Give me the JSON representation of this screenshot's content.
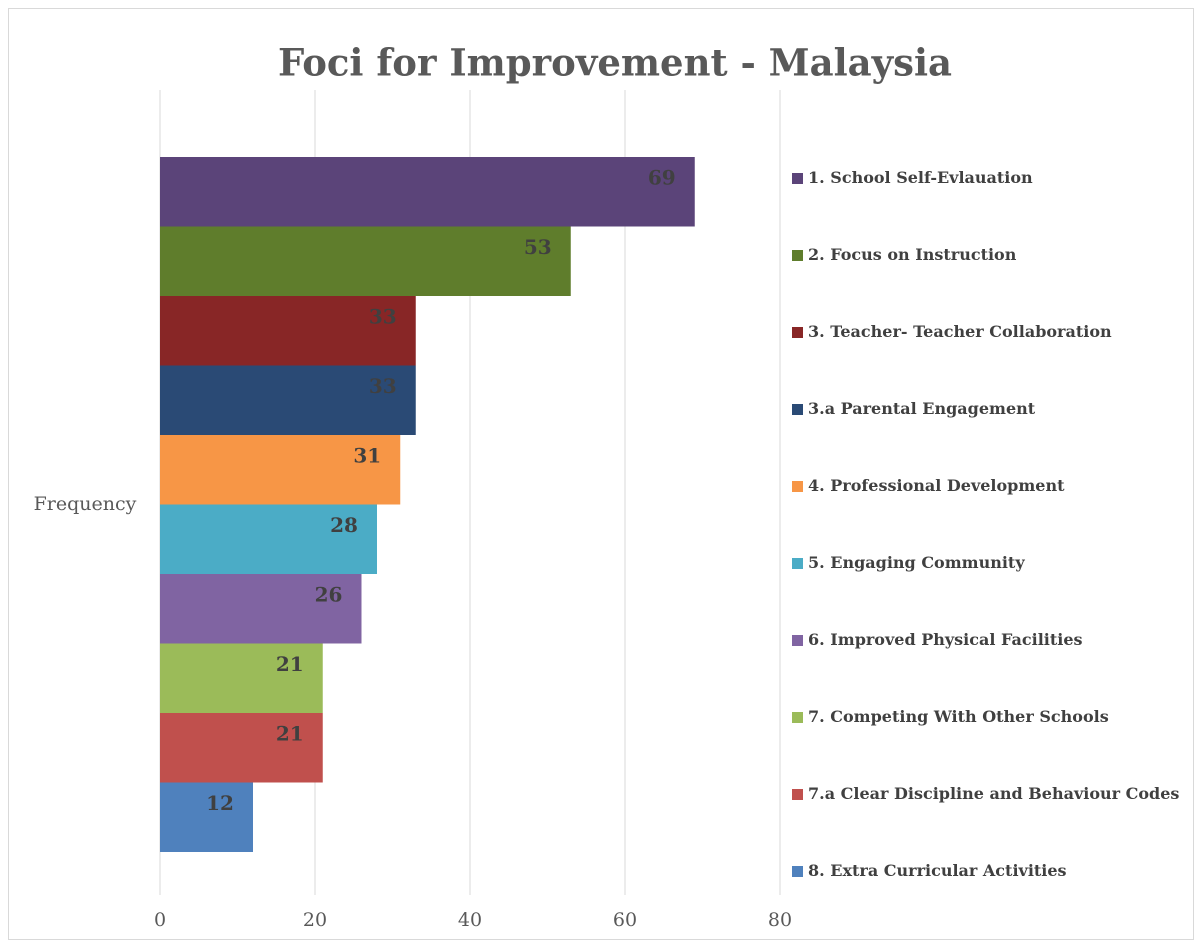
{
  "chart_data": {
    "type": "bar",
    "orientation": "horizontal",
    "title": "Foci for Improvement - Malaysia",
    "categories": [
      "Frequency"
    ],
    "series": [
      {
        "name": "1. School Self-Evlauation",
        "color": "#5b4479",
        "values": [
          69
        ]
      },
      {
        "name": "2.  Focus on Instruction",
        "color": "#5f7d2c",
        "values": [
          53
        ]
      },
      {
        "name": "3. Teacher- Teacher Collaboration",
        "color": "#882626",
        "values": [
          33
        ]
      },
      {
        "name": "3.a  Parental Engagement",
        "color": "#2a4a75",
        "values": [
          33
        ]
      },
      {
        "name": "4. Professional  Development",
        "color": "#f79646",
        "values": [
          31
        ]
      },
      {
        "name": "5. Engaging Community",
        "color": "#4bacc6",
        "values": [
          28
        ]
      },
      {
        "name": "6. Improved Physical Facilities",
        "color": "#8064a2",
        "values": [
          26
        ]
      },
      {
        "name": "7. Competing With Other Schools",
        "color": "#9bbb59",
        "values": [
          21
        ]
      },
      {
        "name": "7.a Clear Discipline and Behaviour Codes",
        "color": "#c0504d",
        "values": [
          21
        ]
      },
      {
        "name": "8. Extra Curricular Activities",
        "color": "#4f81bd",
        "values": [
          12
        ]
      }
    ],
    "xlim": [
      0,
      80
    ],
    "xticks": [
      0,
      20,
      40,
      60,
      80
    ],
    "grid": true,
    "legend": "right"
  }
}
